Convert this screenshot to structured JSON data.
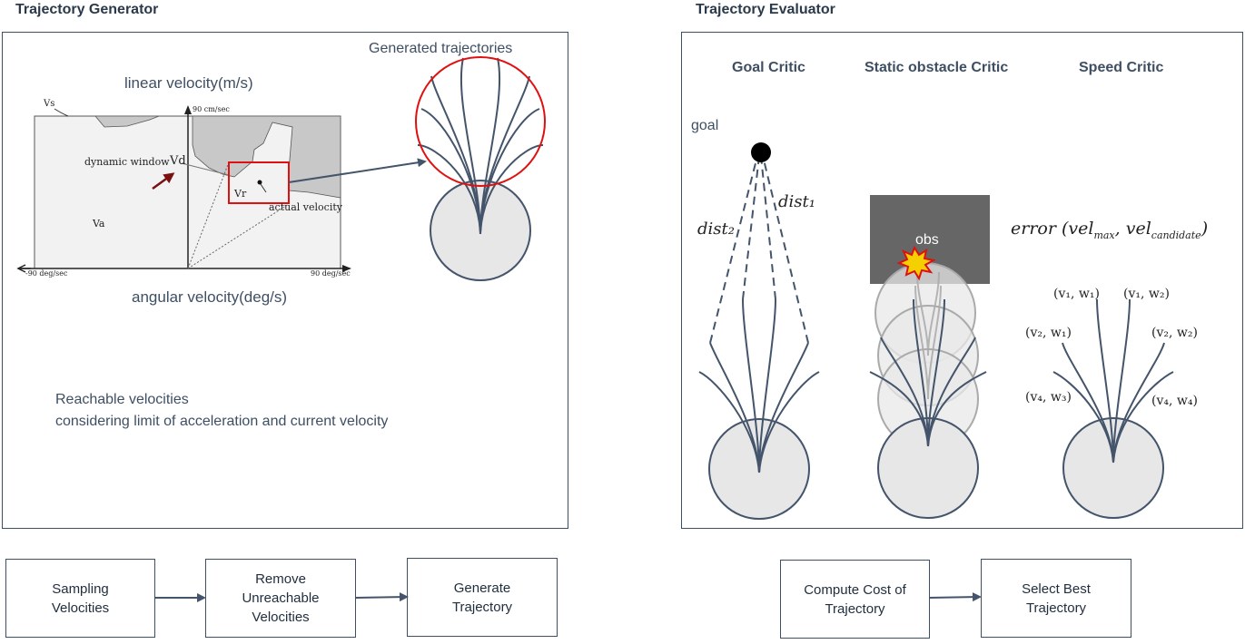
{
  "generator": {
    "title": "Trajectory Generator",
    "linear_velocity_label": "linear velocity(m/s)",
    "angular_velocity_label": "angular velocity(deg/s)",
    "generated_label": "Generated trajectories",
    "reachable_line1": "Reachable velocities",
    "reachable_line2": "considering limit of acceleration and current velocity",
    "plot": {
      "vs": "Vs",
      "y_top": "90 cm/sec",
      "x_left": "-90 deg/sec",
      "x_right": "90 deg/sec",
      "dynamic_window": "dynamic window",
      "vd": "Vd",
      "va": "Va",
      "vr": "Vr",
      "actual_velocity": "actual velocity"
    }
  },
  "evaluator": {
    "title": "Trajectory Evaluator",
    "critics": [
      "Goal Critic",
      "Static obstacle Critic",
      "Speed Critic"
    ],
    "goal_label": "goal",
    "dist1": "dist₁",
    "dist2": "dist₂",
    "obs_label": "obs",
    "error_formula": "error (velmax, velcandidate)",
    "error_main": "error (vel",
    "error_sub1": "max",
    "error_mid": ", vel",
    "error_sub2": "candidate",
    "error_end": ")",
    "speed_labels": [
      "(v₁, w₁)",
      "(v₁, w₂)",
      "(v₂, w₁)",
      "(v₂, w₂)",
      "(v₄, w₃)",
      "(v₄, w₄)"
    ]
  },
  "flow_left": [
    "Sampling\nVelocities",
    "Remove\nUnreachable\nVelocities",
    "Generate\nTrajectory"
  ],
  "flow_right": [
    "Compute Cost of\nTrajectory",
    "Select Best\nTrajectory"
  ],
  "colors": {
    "frame": "#3e4f63",
    "trajectory": "#44546a",
    "robot_fill": "#e7e7e7",
    "highlight": "#e01010",
    "obstacle": "#666666",
    "plot_bg": "#f2f2f2",
    "plot_region": "#c8c8c8"
  }
}
